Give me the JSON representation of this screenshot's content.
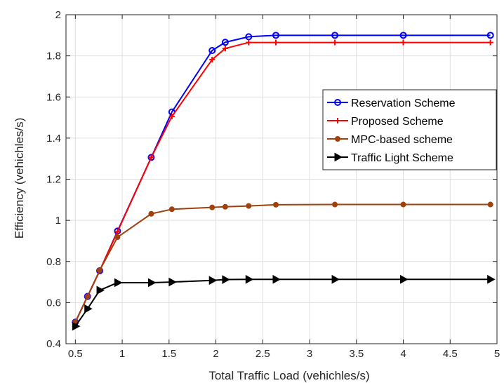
{
  "chart_data": {
    "type": "line",
    "title": "",
    "xlabel": "Total Traffic Load (vehichles/s)",
    "ylabel": "Efficiency (vehichles/s)",
    "xlim": [
      0.4,
      5
    ],
    "ylim": [
      0.4,
      2
    ],
    "xticks": [
      "0.5",
      "1",
      "1.5",
      "2",
      "2.5",
      "3",
      "3.5",
      "4",
      "4.5",
      "5"
    ],
    "yticks": [
      "0.4",
      "0.6",
      "0.8",
      "1",
      "1.2",
      "1.4",
      "1.6",
      "1.8",
      "2"
    ],
    "grid": true,
    "legend_position": "right",
    "series": [
      {
        "name": "Reservation Scheme",
        "color": "#0000ff",
        "marker": "circle",
        "x": [
          0.5,
          0.63,
          0.76,
          0.95,
          1.31,
          1.53,
          1.96,
          2.1,
          2.35,
          2.64,
          3.27,
          4.0,
          4.93
        ],
        "y": [
          0.505,
          0.63,
          0.755,
          0.948,
          1.306,
          1.527,
          1.826,
          1.866,
          1.893,
          1.9,
          1.9,
          1.9,
          1.9
        ]
      },
      {
        "name": "Proposed Scheme",
        "color": "#ff0000",
        "marker": "plus",
        "x": [
          0.5,
          0.63,
          0.76,
          0.95,
          1.31,
          1.53,
          1.96,
          2.1,
          2.35,
          2.64,
          3.27,
          4.0,
          4.93
        ],
        "y": [
          0.505,
          0.63,
          0.755,
          0.945,
          1.306,
          1.505,
          1.782,
          1.836,
          1.865,
          1.865,
          1.865,
          1.865,
          1.865
        ]
      },
      {
        "name": "MPC-based scheme",
        "color": "#a0410d",
        "marker": "dot",
        "x": [
          0.5,
          0.63,
          0.76,
          0.95,
          1.31,
          1.53,
          1.96,
          2.1,
          2.35,
          2.64,
          3.27,
          4.0,
          4.93
        ],
        "y": [
          0.505,
          0.63,
          0.757,
          0.918,
          1.032,
          1.054,
          1.063,
          1.066,
          1.07,
          1.076,
          1.077,
          1.077,
          1.077
        ]
      },
      {
        "name": "Traffic Light Scheme",
        "color": "#000000",
        "marker": "triangle-right",
        "x": [
          0.5,
          0.63,
          0.76,
          0.95,
          1.31,
          1.53,
          1.96,
          2.1,
          2.35,
          2.64,
          3.27,
          4.0,
          4.93
        ],
        "y": [
          0.485,
          0.57,
          0.66,
          0.697,
          0.697,
          0.7,
          0.708,
          0.712,
          0.713,
          0.713,
          0.713,
          0.713,
          0.713
        ]
      }
    ]
  }
}
